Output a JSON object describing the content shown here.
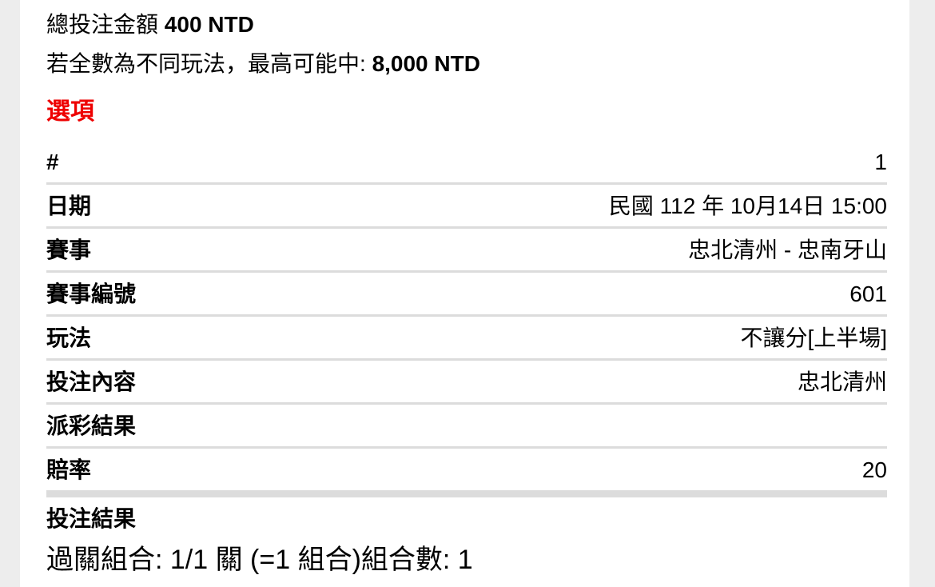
{
  "summary": {
    "total_bet_label": "總投注金額",
    "total_bet_amount": "400 NTD",
    "max_win_label": "若全數為不同玩法，最高可能中:",
    "max_win_amount": "8,000 NTD"
  },
  "section": {
    "title": "選項",
    "title_color": "#ee0000"
  },
  "bet_details": {
    "rows": [
      {
        "label": "#",
        "value": "1"
      },
      {
        "label": "日期",
        "value": "民國 112 年 10月14日 15:00"
      },
      {
        "label": "賽事",
        "value": "忠北清州 - 忠南牙山"
      },
      {
        "label": "賽事編號",
        "value": "601"
      },
      {
        "label": "玩法",
        "value": "不讓分[上半場]"
      },
      {
        "label": "投注內容",
        "value": "忠北清州"
      },
      {
        "label": "派彩結果",
        "value": ""
      },
      {
        "label": "賠率",
        "value": "20"
      },
      {
        "label": "投注結果",
        "value": ""
      }
    ]
  },
  "footer": {
    "combo_text": "過關組合: 1/1 關 (=1 組合)組合數: 1"
  },
  "colors": {
    "page_background": "#ffffff",
    "gutter_background": "#ededed",
    "separator": "#dcdcdc",
    "heading_red": "#ee0000"
  }
}
